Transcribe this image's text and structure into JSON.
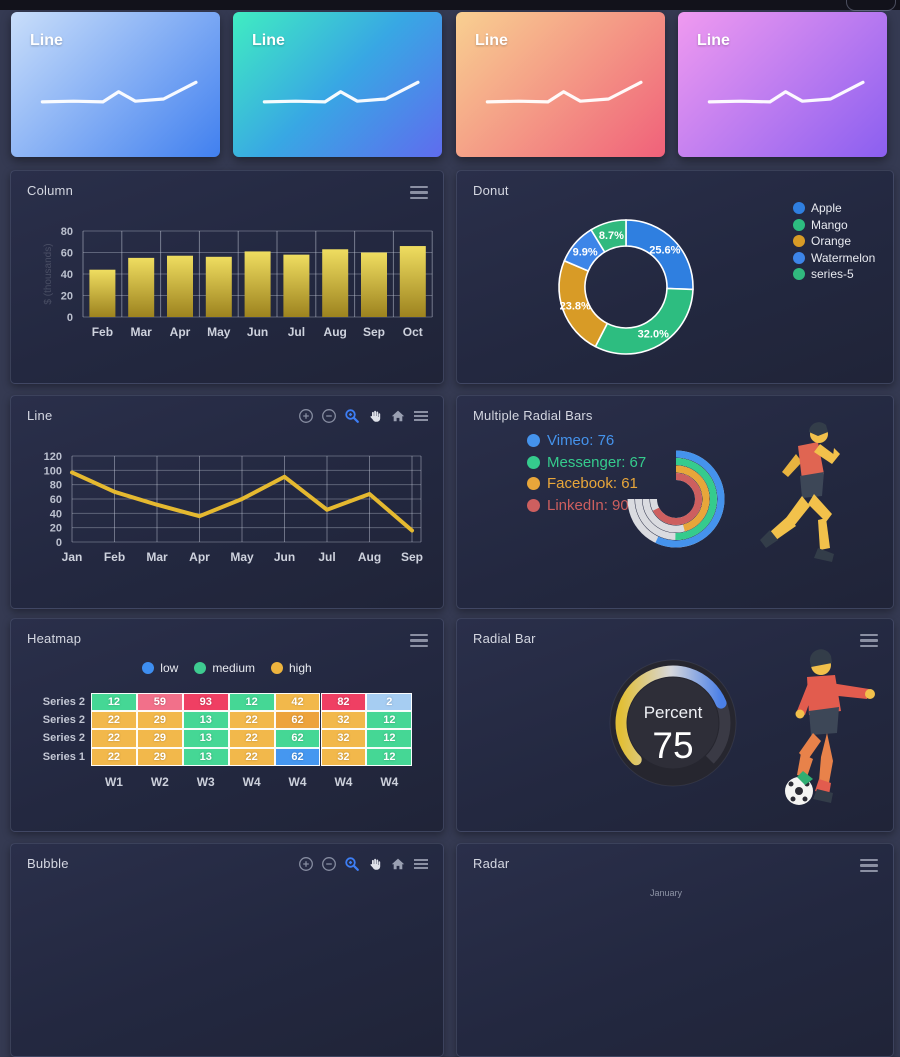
{
  "page": {
    "background": "#353a52",
    "topbar_color": "#12121b"
  },
  "toolbar_icons": [
    "zoom-in",
    "zoom-out",
    "selection-zoom",
    "pan",
    "home",
    "menu"
  ],
  "menu_icon": "menu",
  "sparkline_cards": [
    {
      "title": "Line",
      "gradient": [
        "#c9defa",
        "#4180ef"
      ]
    },
    {
      "title": "Line",
      "gradient": [
        "#40edc1",
        "#38a7e4",
        "#5f6cee"
      ]
    },
    {
      "title": "Line",
      "gradient": [
        "#f8d091",
        "#f0617a"
      ]
    },
    {
      "title": "Line",
      "gradient": [
        "#f09af0",
        "#8b5ff0"
      ]
    }
  ],
  "chart_data": [
    {
      "id": "sparkline",
      "type": "line",
      "title": "Line",
      "line_color": "#ffffff",
      "points": [
        [
          0.15,
          0.62
        ],
        [
          0.3,
          0.615
        ],
        [
          0.44,
          0.62
        ],
        [
          0.515,
          0.55
        ],
        [
          0.595,
          0.615
        ],
        [
          0.73,
          0.6
        ],
        [
          0.885,
          0.485
        ]
      ]
    },
    {
      "id": "column",
      "type": "bar",
      "title": "Column",
      "categories": [
        "Feb",
        "Mar",
        "Apr",
        "May",
        "Jun",
        "Jul",
        "Aug",
        "Sep",
        "Oct"
      ],
      "values": [
        44,
        55,
        57,
        56,
        61,
        58,
        63,
        60,
        66
      ],
      "ylabel": "$ (thousands)",
      "yticks": [
        0,
        20,
        40,
        60,
        80
      ],
      "ylim": [
        0,
        80
      ],
      "bar_gradient": [
        "#efdd60",
        "#9d831f"
      ],
      "grid": true
    },
    {
      "id": "donut",
      "type": "pie",
      "title": "Donut",
      "labels": [
        "Apple",
        "Mango",
        "Orange",
        "Watermelon",
        "series-5"
      ],
      "values": [
        44,
        55,
        41,
        17,
        15
      ],
      "pct_labels": [
        "25.6%",
        "32.0%",
        "23.8%",
        "9.9%",
        "8.7%"
      ],
      "colors": [
        "#2f7fe0",
        "#2dbd80",
        "#d89b26",
        "#3d85e8",
        "#31b97e"
      ],
      "legend_position": "right"
    },
    {
      "id": "line",
      "type": "line",
      "title": "Line",
      "categories": [
        "Jan",
        "Feb",
        "Mar",
        "Apr",
        "May",
        "Jun",
        "Jul",
        "Aug",
        "Sep"
      ],
      "values": [
        97,
        70,
        52,
        36,
        60,
        91,
        45,
        67,
        16
      ],
      "yticks": [
        0,
        20,
        40,
        60,
        80,
        100,
        120
      ],
      "ylim": [
        0,
        120
      ],
      "color": "#e5b930",
      "grid": true
    },
    {
      "id": "radial-multi",
      "type": "radialBar",
      "title": "Multiple Radial Bars",
      "series": [
        {
          "name": "Vimeo",
          "value": 76,
          "color": "#4593ec",
          "display": "Vimeo: 76"
        },
        {
          "name": "Messenger",
          "value": 67,
          "color": "#35cb8d",
          "display": "Messenger: 67"
        },
        {
          "name": "Facebook",
          "value": 61,
          "color": "#e8a63a",
          "display": "Facebook: 61"
        },
        {
          "name": "LinkedIn",
          "value": 90,
          "color": "#cd5f5f",
          "display": "LinkedIn: 90"
        }
      ],
      "max_angle": 270,
      "track_color": "#eaeaee"
    },
    {
      "id": "heatmap",
      "type": "heatmap",
      "title": "Heatmap",
      "legend": [
        {
          "label": "low",
          "color": "#3e8ef0"
        },
        {
          "label": "medium",
          "color": "#3ecb90"
        },
        {
          "label": "high",
          "color": "#edb43e"
        }
      ],
      "columns": [
        "W1",
        "W2",
        "W3",
        "W4",
        "W4",
        "W4",
        "W4"
      ],
      "rows": [
        {
          "label": "Series 2",
          "values": [
            12,
            59,
            93,
            12,
            42,
            82,
            2
          ],
          "colors": [
            "#45d795",
            "#f2708a",
            "#ef3f63",
            "#45d795",
            "#f2b84b",
            "#ef3f63",
            "#a6cdf2"
          ]
        },
        {
          "label": "Series 2",
          "values": [
            22,
            29,
            13,
            22,
            62,
            32,
            12
          ],
          "colors": [
            "#f2b84b",
            "#f2b84b",
            "#45d795",
            "#f2b84b",
            "#eda33c",
            "#f2b84b",
            "#45d795"
          ]
        },
        {
          "label": "Series 2",
          "values": [
            22,
            29,
            13,
            22,
            62,
            32,
            12
          ],
          "colors": [
            "#f2b84b",
            "#f2b84b",
            "#45d795",
            "#f2b84b",
            "#45d795",
            "#f2b84b",
            "#45d795"
          ]
        },
        {
          "label": "Series 1",
          "values": [
            22,
            29,
            13,
            22,
            62,
            32,
            12
          ],
          "colors": [
            "#f2b84b",
            "#f2b84b",
            "#45d795",
            "#f2b84b",
            "#4597f0",
            "#f2b84b",
            "#45d795"
          ]
        }
      ]
    },
    {
      "id": "radial-single",
      "type": "radialBar",
      "title": "Radial Bar",
      "label": "Percent",
      "value": 75,
      "gradient": [
        "#e2bf36",
        "#d6d7db",
        "#4b80e8"
      ],
      "max_angle": 270
    },
    {
      "id": "bubble",
      "type": "bubble",
      "title": "Bubble"
    },
    {
      "id": "radar",
      "type": "radar",
      "title": "Radar",
      "visible_label": "January"
    }
  ]
}
